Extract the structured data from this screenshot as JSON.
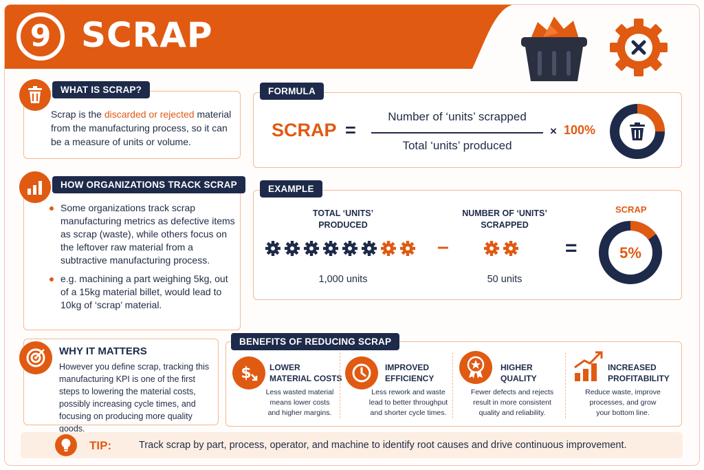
{
  "header": {
    "number": "9",
    "title": "SCRAP"
  },
  "what_is": {
    "heading": "WHAT IS SCRAP?",
    "text_before": "Scrap is the ",
    "text_highlight": "discarded or rejected",
    "text_after": " material from the manufacturing process, so it can be a measure of units or volume."
  },
  "track": {
    "heading": "HOW ORGANIZATIONS TRACK SCRAP",
    "bullets": [
      "Some organizations track scrap manufacturing metrics as defective items as scrap (waste), while others focus on the leftover raw material from a subtractive manufacturing process.",
      "e.g. machining a part weighing 5kg, out of a 15kg material billet, would lead to 10kg of ‘scrap’ material."
    ]
  },
  "why": {
    "heading": "WHY IT MATTERS",
    "text": "However you define scrap, tracking this manufacturing KPI is one of the first steps to lowering the material costs, possibly increasing cycle times, and focusing on producing more quality goods."
  },
  "formula": {
    "heading": "FORMULA",
    "lhs": "SCRAP",
    "equals": "=",
    "numerator": "Number of ‘units’ scrapped",
    "denominator": "Total ‘units’ produced",
    "times": "×",
    "percent": "100%",
    "ring_fraction": 0.25
  },
  "example": {
    "heading": "EXAMPLE",
    "total_label": "TOTAL ‘UNITS’\nPRODUCED",
    "total_value": "1,000 units",
    "scrapped_label": "NUMBER OF ‘UNITS’\nSCRAPPED",
    "scrapped_value": "50 units",
    "minus": "–",
    "equals": "=",
    "result_label": "SCRAP",
    "result_value": "5%",
    "result_fraction": 0.05,
    "total_gears_dark": 6,
    "total_gears_orange": 2,
    "scrapped_gears": 2
  },
  "benefits": {
    "heading": "BENEFITS OF REDUCING SCRAP",
    "items": [
      {
        "title": "LOWER\nMATERIAL COSTS",
        "desc": "Less wasted material\nmeans lower costs\nand higher margins.",
        "icon": "dollar-down-icon"
      },
      {
        "title": "IMPROVED\nEFFICIENCY",
        "desc": "Less rework and waste\nlead to better throughput\nand shorter cycle times.",
        "icon": "clock-icon"
      },
      {
        "title": "HIGHER\nQUALITY",
        "desc": "Fewer defects and rejects\nresult in more consistent\nquality and reliability.",
        "icon": "quality-badge-icon"
      },
      {
        "title": "INCREASED\nPROFITABILITY",
        "desc": "Reduce waste, improve\nprocesses, and grow\nyour bottom line.",
        "icon": "growth-chart-icon"
      }
    ]
  },
  "tip": {
    "label": "TIP:",
    "text": "Track scrap by part, process, operator, and machine to identify root causes and drive continuous improvement."
  },
  "colors": {
    "orange": "#e05a12",
    "navy": "#1e2a4a",
    "peach": "#fdeee3",
    "border": "#f0b994"
  }
}
